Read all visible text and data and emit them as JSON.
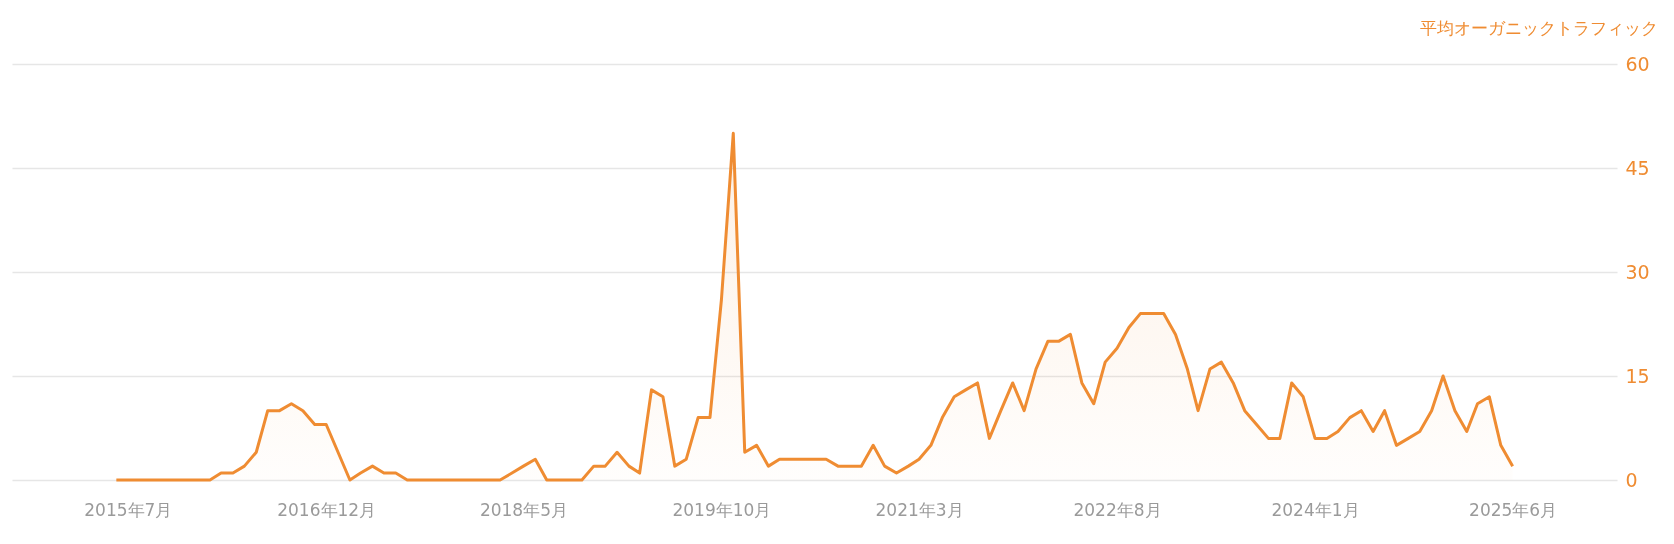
{
  "chart_data": {
    "type": "area",
    "ylabel": "平均オーガニックトラフィック",
    "x": [
      "2015-06",
      "2015-07",
      "2015-08",
      "2015-09",
      "2015-10",
      "2015-11",
      "2015-12",
      "2016-01",
      "2016-02",
      "2016-03",
      "2016-04",
      "2016-05",
      "2016-06",
      "2016-07",
      "2016-08",
      "2016-09",
      "2016-10",
      "2016-11",
      "2016-12",
      "2017-01",
      "2017-02",
      "2017-03",
      "2017-04",
      "2017-05",
      "2017-06",
      "2017-07",
      "2017-08",
      "2017-09",
      "2017-10",
      "2017-11",
      "2017-12",
      "2018-01",
      "2018-02",
      "2018-03",
      "2018-04",
      "2018-05",
      "2018-06",
      "2018-07",
      "2018-08",
      "2018-09",
      "2018-10",
      "2018-11",
      "2018-12",
      "2019-01",
      "2019-02",
      "2019-03",
      "2019-04",
      "2019-05",
      "2019-06",
      "2019-07",
      "2019-08",
      "2019-09",
      "2019-10",
      "2019-11",
      "2019-12",
      "2020-01",
      "2020-02",
      "2020-03",
      "2020-04",
      "2020-05",
      "2020-06",
      "2020-07",
      "2020-08",
      "2020-09",
      "2020-10",
      "2020-11",
      "2020-12",
      "2021-01",
      "2021-02",
      "2021-03",
      "2021-04",
      "2021-05",
      "2021-06",
      "2021-07",
      "2021-08",
      "2021-09",
      "2021-10",
      "2021-11",
      "2021-12",
      "2022-01",
      "2022-02",
      "2022-03",
      "2022-04",
      "2022-05",
      "2022-06",
      "2022-07",
      "2022-08",
      "2022-09",
      "2022-10",
      "2022-11",
      "2022-12",
      "2023-01",
      "2023-02",
      "2023-03",
      "2023-04",
      "2023-05",
      "2023-06",
      "2023-07",
      "2023-08",
      "2023-09",
      "2023-10",
      "2023-11",
      "2023-12",
      "2024-01",
      "2024-02",
      "2024-03",
      "2024-04",
      "2024-05",
      "2024-06",
      "2024-07",
      "2024-08",
      "2024-09",
      "2024-10",
      "2024-11",
      "2024-12",
      "2025-01",
      "2025-02",
      "2025-03",
      "2025-04",
      "2025-05",
      "2025-06"
    ],
    "series": [
      {
        "color": "#ef8c32",
        "values": [
          0,
          0,
          0,
          0,
          0,
          0,
          0,
          0,
          0,
          1,
          1,
          2,
          4,
          10,
          10,
          11,
          10,
          8,
          8,
          4,
          0,
          1,
          2,
          1,
          1,
          0,
          0,
          0,
          0,
          0,
          0,
          0,
          0,
          0,
          1,
          2,
          3,
          0,
          0,
          0,
          0,
          2,
          2,
          4,
          2,
          1,
          13,
          12,
          2,
          3,
          9,
          9,
          26,
          50,
          4,
          5,
          2,
          3,
          3,
          3,
          3,
          3,
          2,
          2,
          2,
          5,
          2,
          1,
          2,
          3,
          5,
          9,
          12,
          13,
          14,
          6,
          10,
          14,
          10,
          16,
          20,
          20,
          21,
          14,
          11,
          17,
          19,
          22,
          24,
          24,
          24,
          21,
          16,
          10,
          16,
          17,
          14,
          10,
          8,
          6,
          6,
          14,
          12,
          6,
          6,
          7,
          9,
          10,
          7,
          10,
          5,
          6,
          7,
          10,
          15,
          10,
          7,
          11,
          12,
          5,
          2
        ]
      }
    ],
    "xlim": [
      "2014-09",
      "2026-03"
    ],
    "xticks": [
      {
        "value": "2015-07",
        "label": "2015年7月"
      },
      {
        "value": "2016-12",
        "label": "2016年12月"
      },
      {
        "value": "2018-05",
        "label": "2018年5月"
      },
      {
        "value": "2019-10",
        "label": "2019年10月"
      },
      {
        "value": "2021-03",
        "label": "2021年3月"
      },
      {
        "value": "2022-08",
        "label": "2022年8月"
      },
      {
        "value": "2024-01",
        "label": "2024年1月"
      },
      {
        "value": "2025-06",
        "label": "2025年6月"
      }
    ],
    "ylim": [
      0,
      60
    ],
    "yticks": [
      0,
      15,
      30,
      45,
      60
    ],
    "grid": "y"
  }
}
